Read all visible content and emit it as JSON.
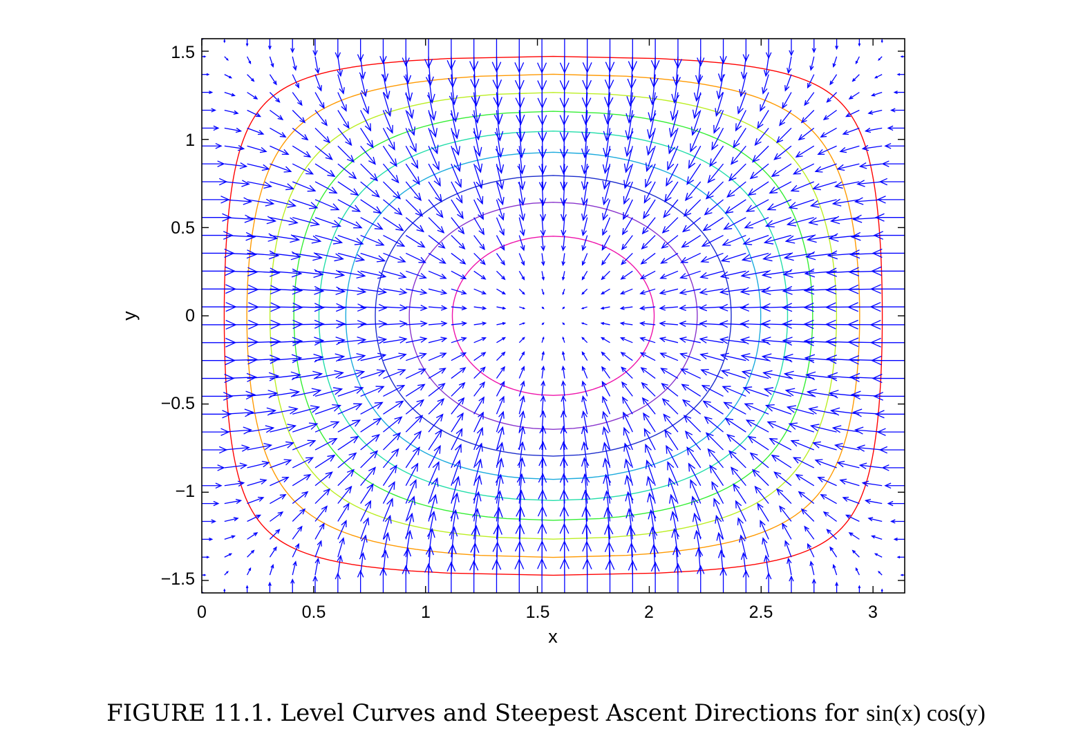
{
  "chart_data": {
    "type": "contour",
    "title": "",
    "xlabel": "x",
    "ylabel": "y",
    "xlim": [
      0,
      3.14159
    ],
    "ylim": [
      -1.5708,
      1.5708
    ],
    "xticks": [
      0,
      0.5,
      1,
      1.5,
      2,
      2.5,
      3
    ],
    "xtick_labels": [
      "0",
      "0.5",
      "1",
      "1.5",
      "2",
      "2.5",
      "3"
    ],
    "yticks": [
      -1.5,
      -1,
      -0.5,
      0,
      0.5,
      1,
      1.5
    ],
    "ytick_labels": [
      "−1.5",
      "−1",
      "−0.5",
      "0",
      "0.5",
      "1",
      "1.5"
    ],
    "function": "sin(x)cos(y)",
    "contour_levels": [
      {
        "level": 0.1,
        "color": "#ff0000"
      },
      {
        "level": 0.2,
        "color": "#ff9900"
      },
      {
        "level": 0.3,
        "color": "#bbee22"
      },
      {
        "level": 0.4,
        "color": "#33ee33"
      },
      {
        "level": 0.5,
        "color": "#22ddaa"
      },
      {
        "level": 0.6,
        "color": "#1aaadd"
      },
      {
        "level": 0.7,
        "color": "#1a2bcc"
      },
      {
        "level": 0.8,
        "color": "#8833cc"
      },
      {
        "level": 0.9,
        "color": "#ee11aa"
      }
    ],
    "vector_field": {
      "type": "gradient",
      "u": "cos(x)cos(y)",
      "v": "-sin(x)sin(y)",
      "x_range": [
        0,
        3.14159
      ],
      "x_count": 32,
      "y_range": [
        -1.5708,
        1.5708
      ],
      "y_count": 32,
      "color": "#0000ff"
    },
    "grid": false,
    "legend": "none"
  },
  "caption": {
    "prefix": "FIGURE 11.1. Level Curves and Steepest Ascent Directions for ",
    "formula": "sin(x) cos(y)"
  }
}
